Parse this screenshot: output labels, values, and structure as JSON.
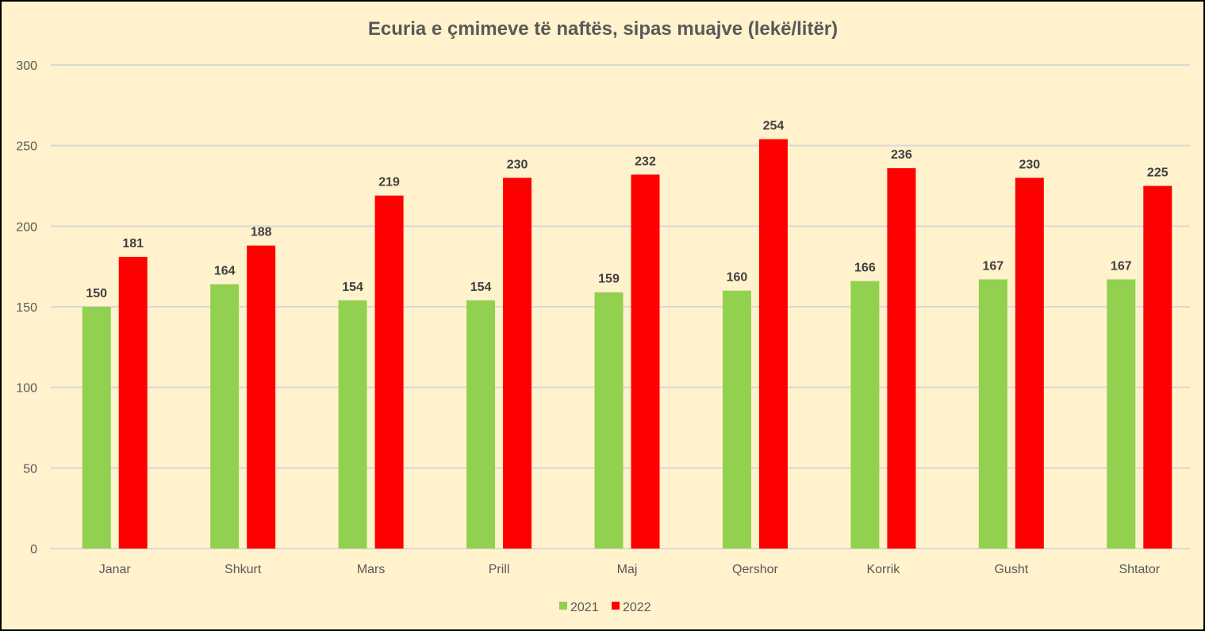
{
  "chart_data": {
    "type": "bar",
    "title": "Ecuria e çmimeve të naftës, sipas muajve (lekë/litër)",
    "xlabel": "",
    "ylabel": "",
    "ylim": [
      0,
      300
    ],
    "yticks": [
      0,
      50,
      100,
      150,
      200,
      250,
      300
    ],
    "grid": true,
    "legend_position": "bottom",
    "categories": [
      "Janar",
      "Shkurt",
      "Mars",
      "Prill",
      "Maj",
      "Qershor",
      "Korrik",
      "Gusht",
      "Shtator"
    ],
    "series": [
      {
        "name": "2021",
        "color": "#92D050",
        "values": [
          150,
          164,
          154,
          154,
          159,
          160,
          166,
          167,
          167
        ]
      },
      {
        "name": "2022",
        "color": "#FF0000",
        "values": [
          181,
          188,
          219,
          230,
          232,
          254,
          236,
          230,
          225
        ]
      }
    ]
  }
}
